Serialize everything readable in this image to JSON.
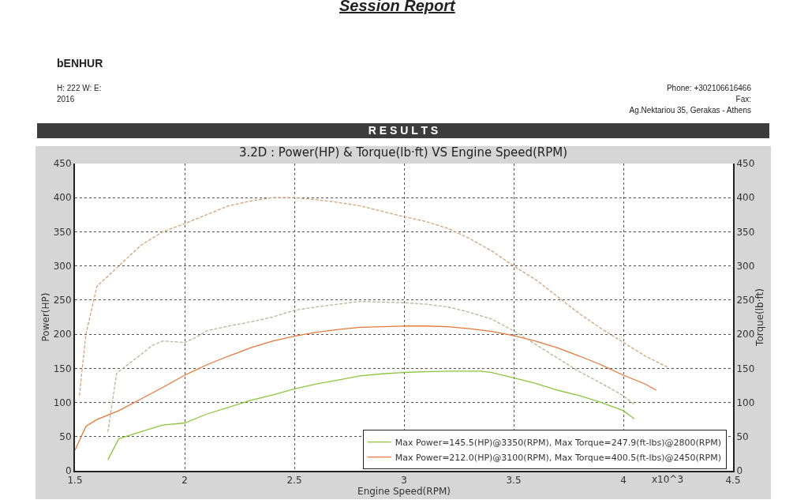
{
  "chart_data": {
    "type": "line",
    "title": "3.2D : Power(HP) & Torque(lb·ft) VS Engine Speed(RPM)",
    "xlabel": "Engine Speed(RPM)",
    "ylabel": "Power(HP)",
    "y2label": "Torque(lb·ft)",
    "annotations": [
      "x10^3",
      "Session Report",
      "bENHUR",
      "H:  222    W:     E:",
      "2016",
      "Phone: +302106616466",
      "Fax:",
      "Ag.Nektariou 35, Gerakas - Athens",
      "R E S U L T S"
    ],
    "xlim": [
      1.5,
      4.5
    ],
    "xticks": [
      1.5,
      2,
      2.5,
      3,
      3.5,
      4,
      4.5
    ],
    "ylim": [
      0,
      450
    ],
    "yticks": [
      0,
      50,
      100,
      150,
      200,
      250,
      300,
      350,
      400,
      450
    ],
    "y2lim": [
      0,
      450
    ],
    "y2ticks": [
      0,
      50,
      100,
      150,
      200,
      250,
      300,
      350,
      400,
      450
    ],
    "grid": true,
    "legend": "bottom right",
    "marker": "none",
    "series": [
      {
        "name": "Max Power=145.5(HP)@3350(RPM), Max Torque=247.9(ft-lbs)@2800(RPM)",
        "color": "#8cc63f",
        "line_style": "solid",
        "x": [
          1.65,
          1.7,
          1.8,
          1.9,
          2.0,
          2.1,
          2.2,
          2.3,
          2.4,
          2.5,
          2.6,
          2.7,
          2.8,
          2.9,
          3.0,
          3.1,
          3.2,
          3.35,
          3.4,
          3.5,
          3.6,
          3.7,
          3.8,
          3.9,
          4.0,
          4.05
        ],
        "values": [
          16,
          47,
          57,
          67,
          70,
          83,
          93,
          103,
          111,
          120,
          127,
          133,
          139,
          142,
          144,
          145,
          146,
          146,
          144,
          136,
          128,
          118,
          110,
          100,
          88,
          76
        ]
      },
      {
        "name": "Max Power=212.0(HP)@3100(RPM), Max Torque=400.5(ft-lbs)@2450(RPM)",
        "color": "#e8773a",
        "line_style": "solid",
        "x": [
          1.5,
          1.55,
          1.6,
          1.7,
          1.8,
          1.9,
          2.0,
          2.1,
          2.2,
          2.3,
          2.4,
          2.5,
          2.6,
          2.7,
          2.8,
          2.9,
          3.0,
          3.1,
          3.2,
          3.3,
          3.4,
          3.5,
          3.6,
          3.7,
          3.8,
          3.9,
          4.0,
          4.1,
          4.15
        ],
        "values": [
          30,
          65,
          75,
          88,
          105,
          122,
          140,
          155,
          168,
          180,
          190,
          197,
          203,
          207,
          210,
          211,
          212,
          212,
          211,
          208,
          204,
          198,
          190,
          180,
          168,
          155,
          140,
          127,
          118
        ]
      },
      {
        "color": "#d4a478",
        "line_style": "dashed",
        "axis": "y2",
        "x": [
          1.52,
          1.55,
          1.6,
          1.7,
          1.8,
          1.9,
          2.0,
          2.1,
          2.2,
          2.3,
          2.4,
          2.45,
          2.5,
          2.6,
          2.7,
          2.8,
          2.9,
          3.0,
          3.1,
          3.2,
          3.3,
          3.4,
          3.5,
          3.6,
          3.7,
          3.8,
          3.9,
          4.0,
          4.1,
          4.2
        ],
        "values": [
          110,
          200,
          270,
          300,
          330,
          350,
          362,
          375,
          388,
          395,
          400,
          400,
          400,
          397,
          393,
          388,
          380,
          372,
          365,
          355,
          340,
          322,
          300,
          280,
          255,
          230,
          208,
          188,
          168,
          152
        ]
      },
      {
        "color": "#b8b496",
        "line_style": "dashed",
        "axis": "y2",
        "x": [
          1.65,
          1.69,
          1.8,
          1.85,
          1.9,
          2.0,
          2.05,
          2.1,
          2.2,
          2.3,
          2.4,
          2.5,
          2.6,
          2.7,
          2.8,
          2.9,
          3.0,
          3.1,
          3.2,
          3.3,
          3.4,
          3.5,
          3.6,
          3.7,
          3.8,
          3.9,
          4.0,
          4.05
        ],
        "values": [
          57,
          143,
          170,
          183,
          190,
          188,
          195,
          205,
          212,
          218,
          225,
          235,
          240,
          244,
          248,
          247,
          246,
          244,
          240,
          232,
          222,
          205,
          185,
          165,
          145,
          128,
          110,
          97
        ]
      }
    ]
  }
}
